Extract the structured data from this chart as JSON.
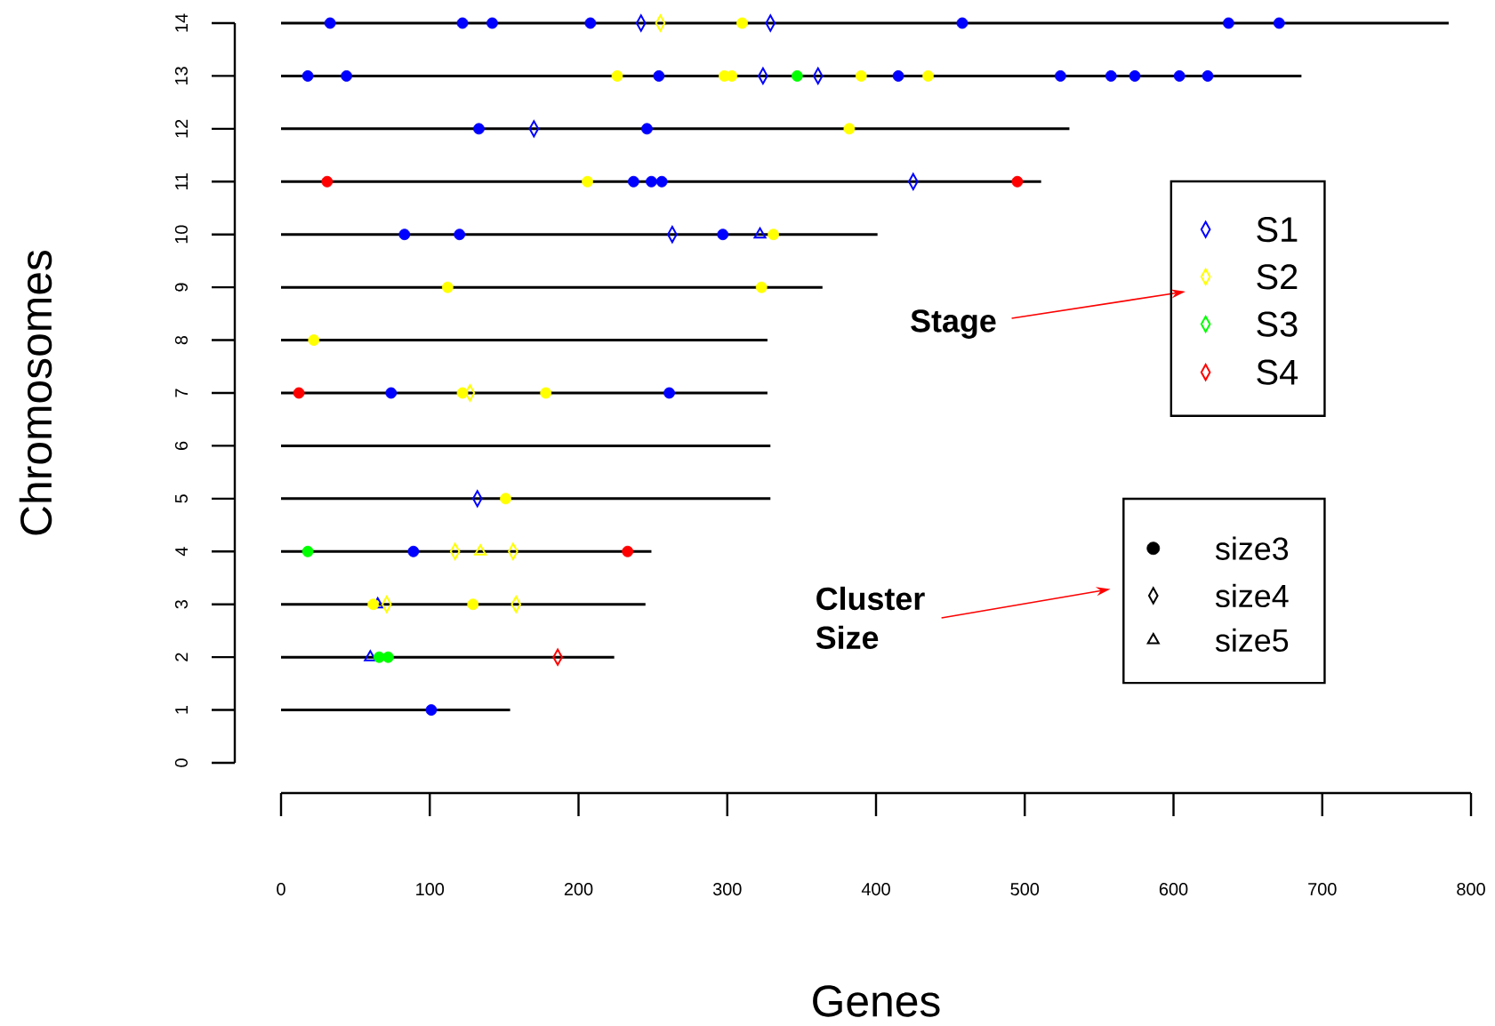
{
  "chart_data": {
    "type": "scatter",
    "xlabel": "Genes",
    "ylabel": "Chromosomes",
    "xlim": [
      0,
      800
    ],
    "xticks": [
      0,
      100,
      200,
      300,
      400,
      500,
      600,
      700,
      800
    ],
    "ylim": [
      0,
      14
    ],
    "yticks": [
      0,
      1,
      2,
      3,
      4,
      5,
      6,
      7,
      8,
      9,
      10,
      11,
      12,
      13,
      14
    ],
    "legend": "right",
    "annotations": [
      "Stage",
      "Cluster Size",
      "S3",
      "size3",
      "size4",
      "size5"
    ],
    "series": [
      {
        "type": "line",
        "color": "#000000",
        "x": [
          0,
          154
        ],
        "values": [
          1,
          1
        ]
      },
      {
        "type": "line",
        "color": "#000000",
        "x": [
          0,
          224
        ],
        "values": [
          2,
          2
        ]
      },
      {
        "type": "line",
        "color": "#000000",
        "x": [
          0,
          245
        ],
        "values": [
          3,
          3
        ]
      },
      {
        "type": "line",
        "color": "#000000",
        "x": [
          0,
          249
        ],
        "values": [
          4,
          4
        ]
      },
      {
        "type": "line",
        "color": "#000000",
        "x": [
          0,
          329
        ],
        "values": [
          5,
          5
        ]
      },
      {
        "type": "line",
        "color": "#000000",
        "x": [
          0,
          329
        ],
        "values": [
          6,
          6
        ]
      },
      {
        "type": "line",
        "color": "#000000",
        "x": [
          0,
          327
        ],
        "values": [
          7,
          7
        ]
      },
      {
        "type": "line",
        "color": "#000000",
        "x": [
          0,
          327
        ],
        "values": [
          8,
          8
        ]
      },
      {
        "type": "line",
        "color": "#000000",
        "x": [
          0,
          364
        ],
        "values": [
          9,
          9
        ]
      },
      {
        "type": "line",
        "color": "#000000",
        "x": [
          0,
          401
        ],
        "values": [
          10,
          10
        ]
      },
      {
        "type": "line",
        "color": "#000000",
        "x": [
          0,
          511
        ],
        "values": [
          11,
          11
        ]
      },
      {
        "type": "line",
        "color": "#000000",
        "x": [
          0,
          530
        ],
        "values": [
          12,
          12
        ]
      },
      {
        "type": "line",
        "color": "#000000",
        "x": [
          0,
          686
        ],
        "values": [
          13,
          13
        ]
      },
      {
        "type": "line",
        "color": "#000000",
        "x": [
          0,
          785
        ],
        "values": [
          14,
          14
        ]
      },
      {
        "color": "#0000ff",
        "marker": "circle",
        "x": [
          33,
          122,
          142,
          208,
          458,
          637,
          671,
          18,
          44,
          254,
          415,
          524,
          558,
          574,
          604,
          623,
          133,
          246,
          237,
          249,
          256,
          83,
          120,
          297,
          74,
          261,
          89,
          101
        ],
        "values": [
          14,
          14,
          14,
          14,
          14,
          14,
          14,
          13,
          13,
          13,
          13,
          13,
          13,
          13,
          13,
          13,
          12,
          12,
          11,
          11,
          11,
          10,
          10,
          10,
          7,
          7,
          4,
          1
        ]
      },
      {
        "name": "S1",
        "color": "#0000ff",
        "marker": "diamond",
        "x": [
          242,
          329,
          324,
          361,
          170,
          425,
          263,
          132
        ],
        "values": [
          14,
          14,
          13,
          13,
          12,
          11,
          10,
          5
        ]
      },
      {
        "color": "#0000ff",
        "marker": "triangle",
        "x": [
          322,
          65,
          60
        ],
        "values": [
          10,
          3,
          2
        ]
      },
      {
        "color": "#ffff00",
        "marker": "circle",
        "x": [
          310,
          226,
          298,
          303,
          390,
          435,
          382,
          206,
          331,
          112,
          323,
          22,
          122,
          178,
          151,
          62,
          129
        ],
        "values": [
          14,
          13,
          13,
          13,
          13,
          13,
          12,
          11,
          10,
          9,
          9,
          8,
          7,
          7,
          5,
          3,
          3
        ]
      },
      {
        "name": "S2",
        "color": "#ffff00",
        "marker": "diamond",
        "x": [
          255,
          127,
          117,
          156,
          71,
          158
        ],
        "values": [
          14,
          7,
          4,
          4,
          3,
          3
        ]
      },
      {
        "color": "#ffff00",
        "marker": "triangle",
        "x": [
          134
        ],
        "values": [
          4
        ]
      },
      {
        "color": "#00ff00",
        "marker": "circle",
        "x": [
          347,
          18,
          66,
          72
        ],
        "values": [
          13,
          4,
          2,
          2
        ]
      },
      {
        "color": "#ff0000",
        "marker": "circle",
        "x": [
          31,
          495,
          12,
          233
        ],
        "values": [
          11,
          11,
          7,
          4
        ]
      },
      {
        "name": "S4",
        "color": "#ff0000",
        "marker": "diamond",
        "x": [
          186
        ],
        "values": [
          2
        ]
      }
    ]
  }
}
